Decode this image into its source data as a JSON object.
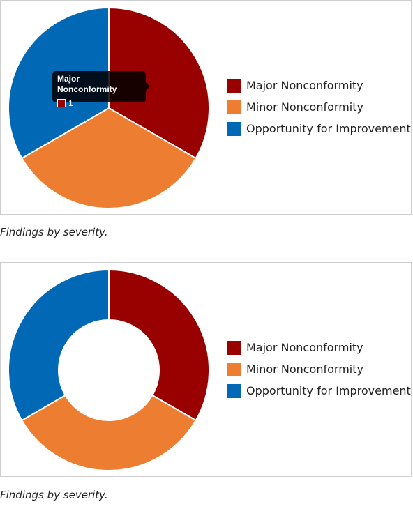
{
  "chart_data": [
    {
      "type": "pie",
      "categories": [
        "Major Nonconformity",
        "Minor Nonconformity",
        "Opportunity for Improvement"
      ],
      "values": [
        1,
        1,
        1
      ],
      "colors": [
        "#990000",
        "#ed7d31",
        "#0068b5"
      ],
      "legend_position": "right",
      "tooltip": {
        "title": "Major Nonconformity",
        "value": "1",
        "color": "#990000"
      }
    },
    {
      "type": "pie",
      "style": "doughnut",
      "categories": [
        "Major Nonconformity",
        "Minor Nonconformity",
        "Opportunity for Improvement"
      ],
      "values": [
        1,
        1,
        1
      ],
      "colors": [
        "#990000",
        "#ed7d31",
        "#0068b5"
      ],
      "legend_position": "right"
    }
  ],
  "captions": [
    "Findings by severity.",
    "Findings by severity."
  ]
}
